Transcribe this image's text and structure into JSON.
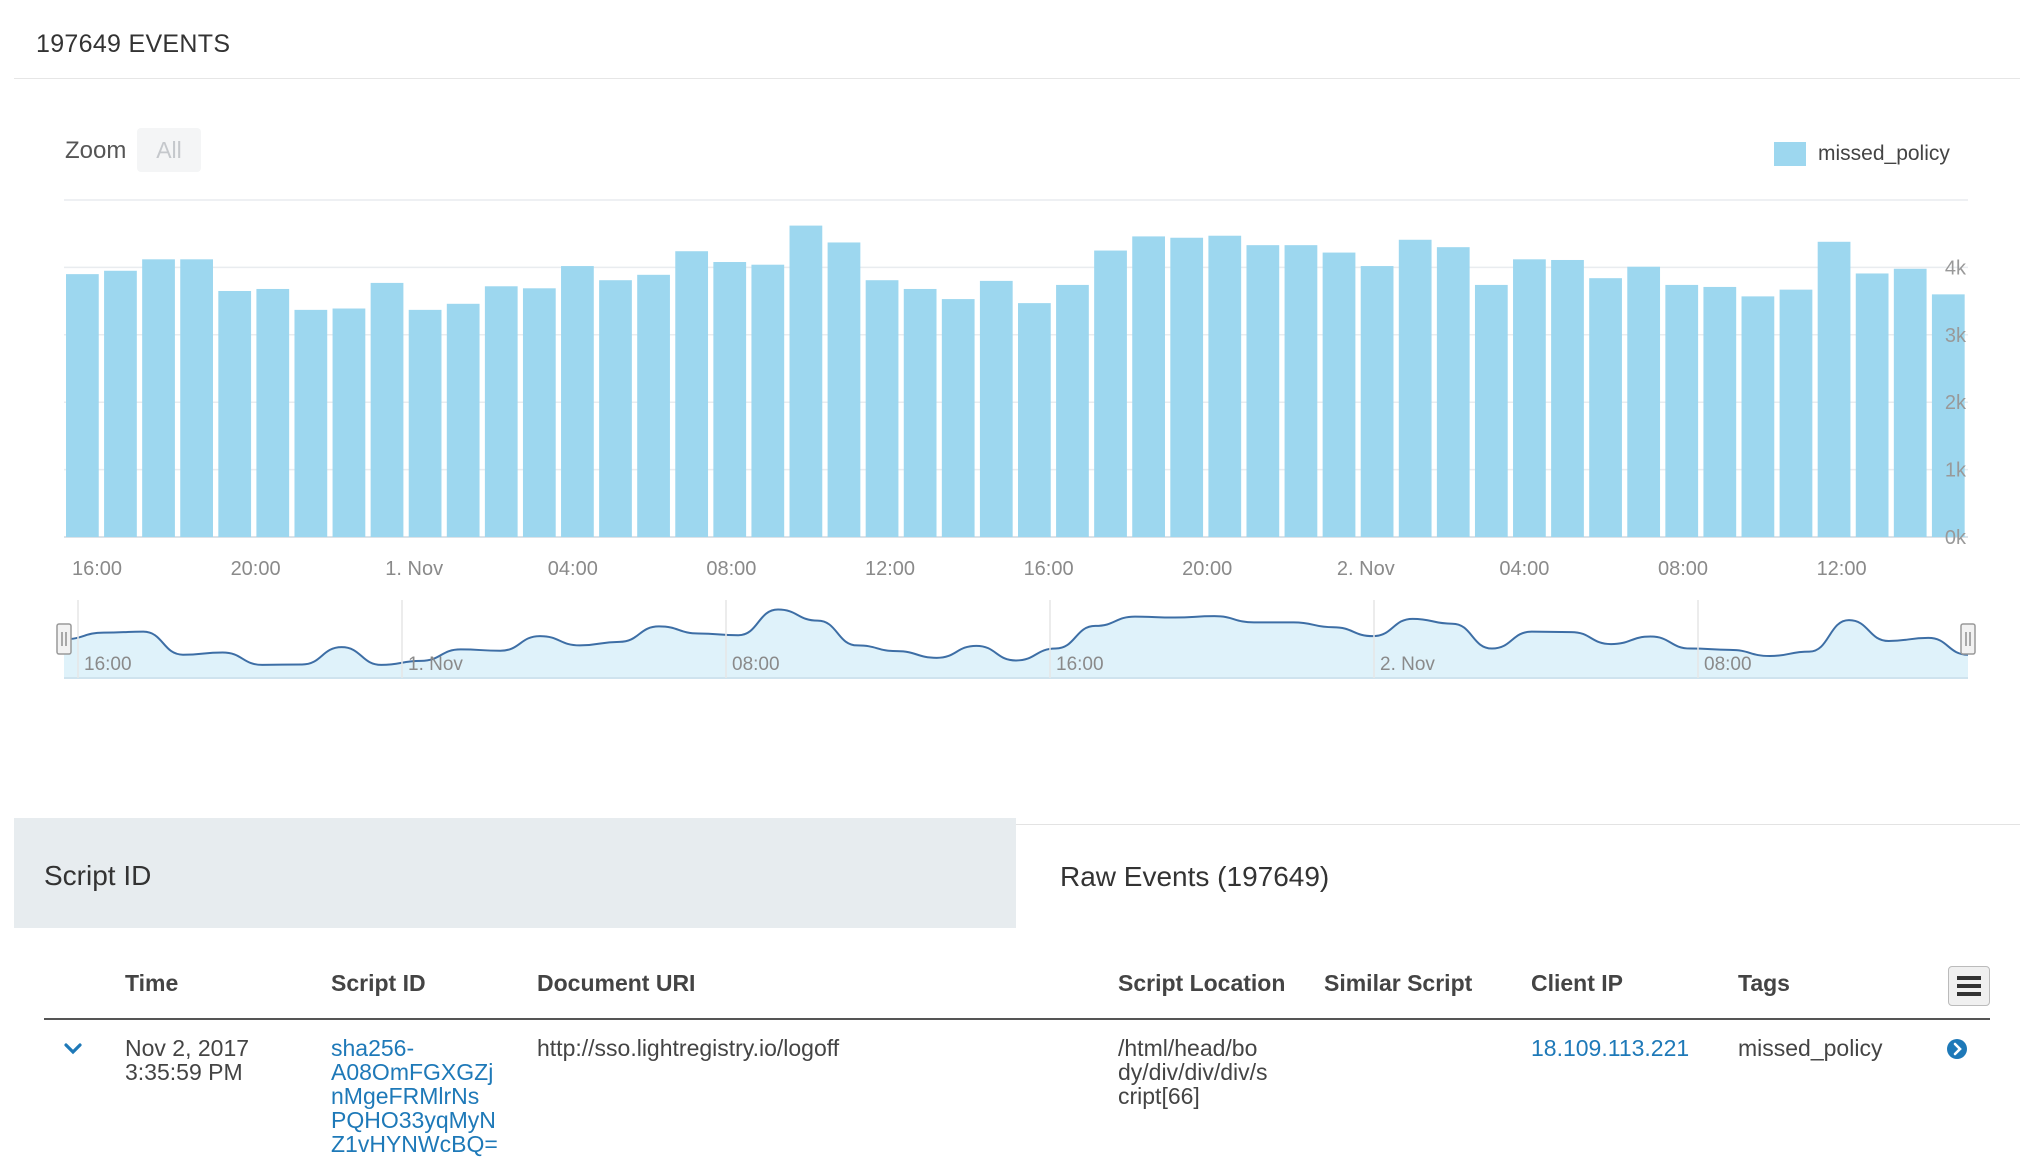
{
  "header": {
    "title": "197649 EVENTS"
  },
  "chart_controls": {
    "zoom_label": "Zoom",
    "zoom_all": "All"
  },
  "colors": {
    "bar": "#9dd7ef",
    "navigator_fill": "#dff2fa",
    "navigator_line": "#3d6ea5",
    "link": "#1e79b8"
  },
  "chart_data": {
    "type": "bar",
    "title": "",
    "legend": {
      "placement": "top-right",
      "series_name": "missed_policy"
    },
    "grid": true,
    "y_axis": {
      "ticks": [
        "0k",
        "1k",
        "2k",
        "3k",
        "4k"
      ],
      "range": [
        0,
        5000
      ]
    },
    "x_labels": [
      "16:00",
      "20:00",
      "1. Nov",
      "04:00",
      "08:00",
      "12:00",
      "16:00",
      "20:00",
      "2. Nov",
      "04:00",
      "08:00",
      "12:00"
    ],
    "series": [
      {
        "name": "missed_policy",
        "values": [
          3900,
          3950,
          4120,
          4120,
          3650,
          3680,
          3370,
          3390,
          3770,
          3370,
          3460,
          3720,
          3690,
          4020,
          3810,
          3890,
          4240,
          4080,
          4040,
          4620,
          4370,
          3810,
          3680,
          3530,
          3800,
          3470,
          3740,
          4250,
          4460,
          4440,
          4470,
          4330,
          4330,
          4220,
          4020,
          4410,
          4300,
          3740,
          4120,
          4110,
          3840,
          4010,
          3740,
          3710,
          3570,
          3670,
          4380,
          3910,
          3980,
          3600
        ]
      }
    ]
  },
  "navigator": {
    "x_labels": [
      "16:00",
      "1. Nov",
      "08:00",
      "16:00",
      "2. Nov",
      "08:00"
    ]
  },
  "tabs": {
    "script_id": "Script ID",
    "raw_events": "Raw Events (197649)"
  },
  "table": {
    "columns": [
      "Time",
      "Script ID",
      "Document URI",
      "Script Location",
      "Similar Script",
      "Client IP",
      "Tags"
    ],
    "row": {
      "time_line1": "Nov 2, 2017",
      "time_line2": "3:35:59 PM",
      "script_id_lines": [
        "sha256-",
        "A08OmFGXGZj",
        "nMgeFRMlrNs",
        "PQHO33yqMyN",
        "Z1vHYNWcBQ="
      ],
      "document_uri": "http://sso.lightregistry.io/logoff",
      "script_location_lines": [
        "/html/head/bo",
        "dy/div/div/div/s",
        "cript[66]"
      ],
      "similar_script": "",
      "client_ip": "18.109.113.221",
      "tags": "missed_policy"
    }
  },
  "icons": {
    "expand": "chevron-down-icon",
    "details": "arrow-circle-right-icon",
    "columns": "column-menu-icon"
  }
}
